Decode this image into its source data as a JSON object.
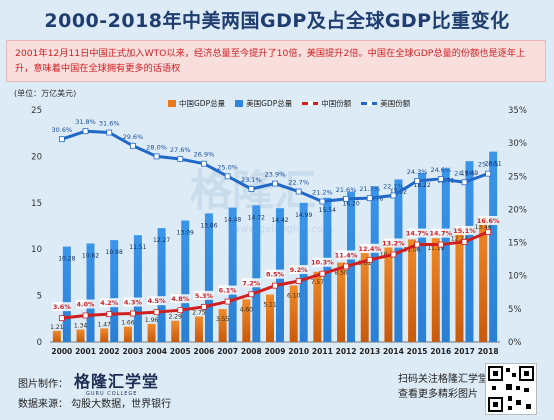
{
  "title": "2000-2018年中美两国GDP及占全球GDP比重变化",
  "note": "2001年12月11日中国正式加入WTO以来，经济总量至今提升了10倍，美国提升2倍。中国在全球GDP总量的份额也是逐年上升，意味着中国在全球拥有更多的话语权",
  "unit": "(单位：万亿美元)",
  "watermark": "格隆汇",
  "watermark_url": "www.gelonghui.com",
  "footer": {
    "made_by_label": "图片制作：",
    "brand": "格隆汇学堂",
    "brand_sub": "GURU COLLEGE",
    "source": "数据来源：  勾股大数据，世界银行",
    "scan": "扫码关注格隆汇学堂",
    "more": "查看更多精彩图片"
  },
  "colors": {
    "cn_bar": "#e97a1c",
    "us_bar": "#2e86de",
    "cn_line": "#d11f1f",
    "us_line": "#2168c8"
  },
  "chart_data": {
    "type": "bar",
    "title": "2000-2018年中美两国GDP及占全球GDP比重变化",
    "categories": [
      "2000",
      "2001",
      "2002",
      "2003",
      "2004",
      "2005",
      "2006",
      "2007",
      "2008",
      "2009",
      "2010",
      "2011",
      "2012",
      "2013",
      "2014",
      "2015",
      "2016",
      "2017",
      "2018"
    ],
    "series": [
      {
        "name": "中国GDP总量",
        "type": "bar",
        "axis": "left",
        "values": [
          1.21,
          1.34,
          1.47,
          1.66,
          1.96,
          2.29,
          2.75,
          3.55,
          4.6,
          5.11,
          6.1,
          7.57,
          8.56,
          9.61,
          10.48,
          11.06,
          11.19,
          12.24,
          13.46
        ]
      },
      {
        "name": "美国GDP总量",
        "type": "bar",
        "axis": "left",
        "values": [
          10.28,
          10.62,
          10.98,
          11.51,
          12.27,
          13.09,
          13.86,
          14.48,
          14.72,
          14.42,
          14.99,
          15.54,
          16.2,
          16.78,
          17.52,
          18.22,
          18.71,
          19.49,
          20.51
        ]
      },
      {
        "name": "中国份额",
        "type": "line",
        "axis": "right",
        "values": [
          3.6,
          4.0,
          4.2,
          4.3,
          4.5,
          4.8,
          5.3,
          6.1,
          7.2,
          8.5,
          9.2,
          10.3,
          11.4,
          12.4,
          13.2,
          14.7,
          14.7,
          15.1,
          16.6
        ],
        "labels": [
          "3.6%",
          "4.0%",
          "4.2%",
          "4.3%",
          "4.5%",
          "4.8%",
          "5.3%",
          "6.1%",
          "7.2%",
          "8.5%",
          "9.2%",
          "10.3%",
          "11.4%",
          "12.4%",
          "13.2%",
          "14.7%",
          "14.7%",
          "15.1%",
          "16.6%"
        ]
      },
      {
        "name": "美国份额",
        "type": "line",
        "axis": "right",
        "values": [
          30.6,
          31.8,
          31.6,
          29.6,
          28.0,
          27.6,
          26.9,
          25.0,
          23.1,
          23.9,
          22.7,
          21.2,
          21.6,
          21.7,
          22.1,
          24.3,
          24.6,
          24.1,
          25.4
        ],
        "labels": [
          "30.6%",
          "31.8%",
          "31.6%",
          "29.6%",
          "28.0%",
          "27.6%",
          "26.9%",
          "25.0%",
          "23.1%",
          "23.9%",
          "22.7%",
          "21.2%",
          "21.6%",
          "21.7%",
          "22.1%",
          "24.3%",
          "24.6%",
          "24.1%",
          "25.4%"
        ]
      }
    ],
    "left_axis": {
      "ylim": [
        0,
        25
      ],
      "ticks": [
        0,
        5,
        10,
        15,
        20,
        25
      ],
      "labels": [
        "0",
        "5",
        "10",
        "15",
        "20",
        "25"
      ]
    },
    "right_axis": {
      "ylim": [
        0,
        35
      ],
      "ticks": [
        0,
        5,
        10,
        15,
        20,
        25,
        30,
        35
      ],
      "labels": [
        "0%",
        "5%",
        "10%",
        "15%",
        "20%",
        "25%",
        "30%",
        "35%"
      ]
    },
    "legend_position": "top"
  }
}
